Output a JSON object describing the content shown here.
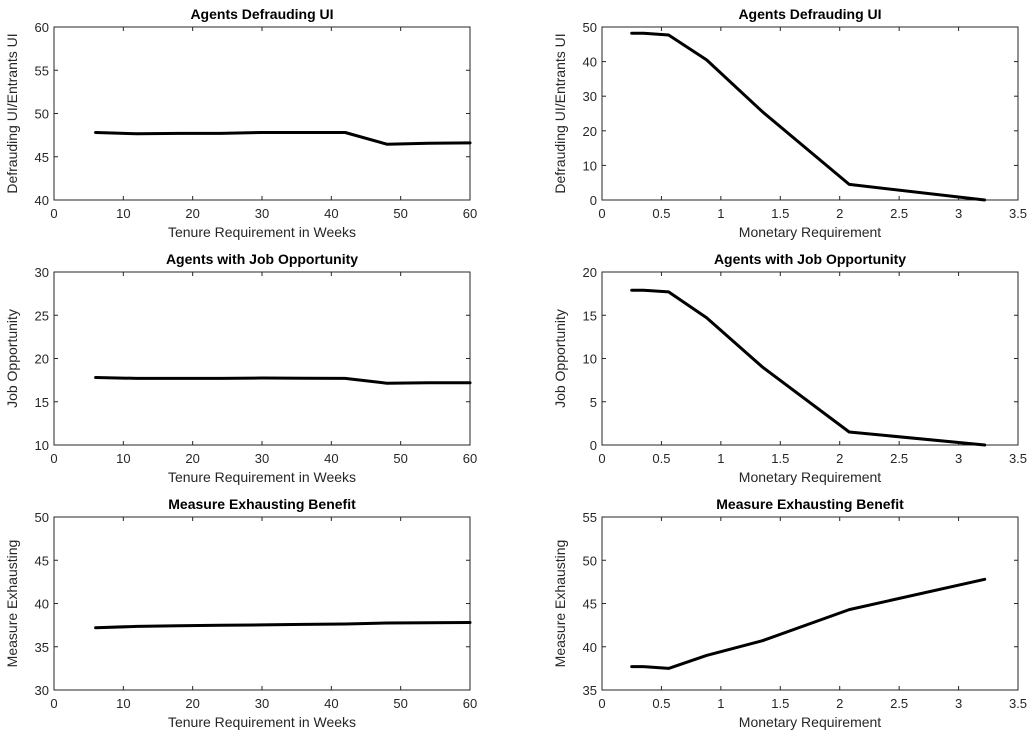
{
  "chart_data": [
    {
      "type": "line",
      "title": "Agents Defrauding UI",
      "xlabel": "Tenure Requirement in Weeks",
      "ylabel": "Defrauding UI/Entrants UI",
      "xlim": [
        0,
        60
      ],
      "ylim": [
        40,
        60
      ],
      "xticks": [
        "0",
        "10",
        "20",
        "30",
        "40",
        "50",
        "60"
      ],
      "yticks": [
        "40",
        "45",
        "50",
        "55",
        "60"
      ],
      "series": [
        {
          "x": [
            6,
            12,
            18,
            24,
            30,
            36,
            42,
            48,
            54,
            60
          ],
          "y": [
            47.8,
            47.65,
            47.7,
            47.7,
            47.8,
            47.8,
            47.8,
            46.45,
            46.55,
            46.6
          ]
        }
      ]
    },
    {
      "type": "line",
      "title": "Agents Defrauding UI",
      "xlabel": "Monetary Requirement",
      "ylabel": "Defrauding UI/Entrants UI",
      "xlim": [
        0,
        3.5
      ],
      "ylim": [
        0,
        50
      ],
      "xticks": [
        "0",
        "0.5",
        "1",
        "1.5",
        "2",
        "2.5",
        "3",
        "3.5"
      ],
      "yticks": [
        "0",
        "10",
        "20",
        "30",
        "40",
        "50"
      ],
      "series": [
        {
          "x": [
            0.25,
            0.35,
            0.56,
            0.88,
            1.35,
            2.08,
            3.22
          ],
          "y": [
            48.2,
            48.2,
            47.7,
            40.5,
            25.5,
            4.5,
            0.0
          ]
        }
      ]
    },
    {
      "type": "line",
      "title": "Agents with Job Opportunity",
      "xlabel": "Tenure Requirement in Weeks",
      "ylabel": "Job Opportunity",
      "xlim": [
        0,
        60
      ],
      "ylim": [
        10,
        30
      ],
      "xticks": [
        "0",
        "10",
        "20",
        "30",
        "40",
        "50",
        "60"
      ],
      "yticks": [
        "10",
        "15",
        "20",
        "25",
        "30"
      ],
      "series": [
        {
          "x": [
            6,
            12,
            18,
            24,
            30,
            36,
            42,
            48,
            54,
            60
          ],
          "y": [
            17.8,
            17.7,
            17.7,
            17.7,
            17.75,
            17.72,
            17.7,
            17.15,
            17.2,
            17.2
          ]
        }
      ]
    },
    {
      "type": "line",
      "title": "Agents with Job Opportunity",
      "xlabel": "Monetary Requirement",
      "ylabel": "Job Opportunity",
      "xlim": [
        0,
        3.5
      ],
      "ylim": [
        0,
        20
      ],
      "xticks": [
        "0",
        "0.5",
        "1",
        "1.5",
        "2",
        "2.5",
        "3",
        "3.5"
      ],
      "yticks": [
        "0",
        "5",
        "10",
        "15",
        "20"
      ],
      "series": [
        {
          "x": [
            0.25,
            0.35,
            0.56,
            0.88,
            1.35,
            2.08,
            3.22
          ],
          "y": [
            17.9,
            17.9,
            17.7,
            14.7,
            9.0,
            1.5,
            0.0
          ]
        }
      ]
    },
    {
      "type": "line",
      "title": "Measure Exhausting Benefit",
      "xlabel": "Tenure Requirement in Weeks",
      "ylabel": "Measure Exhausting",
      "xlim": [
        0,
        60
      ],
      "ylim": [
        30,
        50
      ],
      "xticks": [
        "0",
        "10",
        "20",
        "30",
        "40",
        "50",
        "60"
      ],
      "yticks": [
        "30",
        "35",
        "40",
        "45",
        "50"
      ],
      "series": [
        {
          "x": [
            6,
            12,
            18,
            24,
            30,
            36,
            42,
            48,
            54,
            60
          ],
          "y": [
            37.2,
            37.35,
            37.42,
            37.48,
            37.53,
            37.58,
            37.63,
            37.75,
            37.78,
            37.8
          ]
        }
      ]
    },
    {
      "type": "line",
      "title": "Measure Exhausting Benefit",
      "xlabel": "Monetary Requirement",
      "ylabel": "Measure Exhausting",
      "xlim": [
        0,
        3.5
      ],
      "ylim": [
        35,
        55
      ],
      "xticks": [
        "0",
        "0.5",
        "1",
        "1.5",
        "2",
        "2.5",
        "3",
        "3.5"
      ],
      "yticks": [
        "35",
        "40",
        "45",
        "50",
        "55"
      ],
      "series": [
        {
          "x": [
            0.25,
            0.35,
            0.56,
            0.88,
            1.35,
            2.08,
            3.22
          ],
          "y": [
            37.7,
            37.7,
            37.5,
            39.0,
            40.7,
            44.3,
            47.8
          ]
        }
      ]
    }
  ]
}
